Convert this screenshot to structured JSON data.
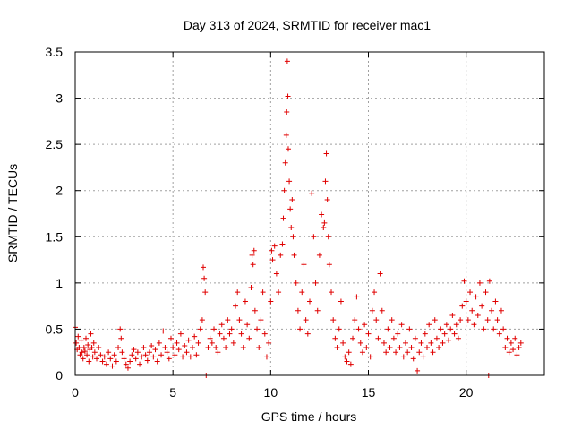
{
  "chart_data": {
    "type": "scatter",
    "title": "Day 313 of 2024, SRMTID for receiver mac1",
    "xlabel": "GPS time / hours",
    "ylabel": "SRMTID / TECUs",
    "xlim": [
      0,
      24
    ],
    "ylim": [
      0,
      3.5
    ],
    "xticks": [
      "0",
      "5",
      "10",
      "15",
      "20"
    ],
    "yticks": [
      "0",
      "0.5",
      "1",
      "1.5",
      "2",
      "2.5",
      "3",
      "3.5"
    ],
    "grid": true,
    "marker": "plus",
    "colors": {
      "series": "#e00000",
      "grid": "#a0a0a0",
      "axis": "#000000"
    },
    "series": [
      {
        "name": "SRMTID",
        "points": [
          [
            0.0,
            0.52
          ],
          [
            0.05,
            0.35
          ],
          [
            0.1,
            0.28
          ],
          [
            0.15,
            0.42
          ],
          [
            0.2,
            0.3
          ],
          [
            0.25,
            0.22
          ],
          [
            0.3,
            0.38
          ],
          [
            0.35,
            0.25
          ],
          [
            0.4,
            0.18
          ],
          [
            0.45,
            0.3
          ],
          [
            0.5,
            0.26
          ],
          [
            0.55,
            0.4
          ],
          [
            0.6,
            0.22
          ],
          [
            0.65,
            0.33
          ],
          [
            0.7,
            0.15
          ],
          [
            0.75,
            0.28
          ],
          [
            0.8,
            0.45
          ],
          [
            0.85,
            0.3
          ],
          [
            0.9,
            0.2
          ],
          [
            0.95,
            0.35
          ],
          [
            1.0,
            0.25
          ],
          [
            1.1,
            0.18
          ],
          [
            1.2,
            0.3
          ],
          [
            1.3,
            0.22
          ],
          [
            1.4,
            0.15
          ],
          [
            1.5,
            0.2
          ],
          [
            1.6,
            0.12
          ],
          [
            1.7,
            0.25
          ],
          [
            1.8,
            0.18
          ],
          [
            1.9,
            0.1
          ],
          [
            2.0,
            0.22
          ],
          [
            2.1,
            0.15
          ],
          [
            2.2,
            0.3
          ],
          [
            2.3,
            0.5
          ],
          [
            2.35,
            0.4
          ],
          [
            2.4,
            0.25
          ],
          [
            2.5,
            0.18
          ],
          [
            2.6,
            0.12
          ],
          [
            2.7,
            0.08
          ],
          [
            2.8,
            0.15
          ],
          [
            2.9,
            0.22
          ],
          [
            3.0,
            0.28
          ],
          [
            3.1,
            0.18
          ],
          [
            3.2,
            0.25
          ],
          [
            3.3,
            0.12
          ],
          [
            3.4,
            0.2
          ],
          [
            3.5,
            0.3
          ],
          [
            3.6,
            0.22
          ],
          [
            3.7,
            0.16
          ],
          [
            3.8,
            0.25
          ],
          [
            3.9,
            0.32
          ],
          [
            4.0,
            0.2
          ],
          [
            4.1,
            0.28
          ],
          [
            4.2,
            0.15
          ],
          [
            4.3,
            0.35
          ],
          [
            4.4,
            0.22
          ],
          [
            4.5,
            0.48
          ],
          [
            4.6,
            0.3
          ],
          [
            4.7,
            0.25
          ],
          [
            4.8,
            0.18
          ],
          [
            4.9,
            0.4
          ],
          [
            5.0,
            0.3
          ],
          [
            5.1,
            0.22
          ],
          [
            5.2,
            0.35
          ],
          [
            5.3,
            0.28
          ],
          [
            5.4,
            0.45
          ],
          [
            5.5,
            0.2
          ],
          [
            5.6,
            0.32
          ],
          [
            5.7,
            0.25
          ],
          [
            5.8,
            0.38
          ],
          [
            5.9,
            0.2
          ],
          [
            6.0,
            0.3
          ],
          [
            6.1,
            0.42
          ],
          [
            6.2,
            0.22
          ],
          [
            6.3,
            0.35
          ],
          [
            6.4,
            0.5
          ],
          [
            6.5,
            0.6
          ],
          [
            6.55,
            1.17
          ],
          [
            6.6,
            1.05
          ],
          [
            6.65,
            0.9
          ],
          [
            6.7,
            0.0
          ],
          [
            6.8,
            0.3
          ],
          [
            6.9,
            0.4
          ],
          [
            7.0,
            0.35
          ],
          [
            7.1,
            0.5
          ],
          [
            7.2,
            0.3
          ],
          [
            7.3,
            0.25
          ],
          [
            7.4,
            0.45
          ],
          [
            7.5,
            0.55
          ],
          [
            7.6,
            0.4
          ],
          [
            7.7,
            0.3
          ],
          [
            7.8,
            0.6
          ],
          [
            7.9,
            0.45
          ],
          [
            8.0,
            0.5
          ],
          [
            8.1,
            0.35
          ],
          [
            8.2,
            0.75
          ],
          [
            8.3,
            0.9
          ],
          [
            8.4,
            0.6
          ],
          [
            8.5,
            0.45
          ],
          [
            8.6,
            0.3
          ],
          [
            8.7,
            0.8
          ],
          [
            8.8,
            0.55
          ],
          [
            8.9,
            0.4
          ],
          [
            9.0,
            0.95
          ],
          [
            9.05,
            1.3
          ],
          [
            9.1,
            1.2
          ],
          [
            9.15,
            1.35
          ],
          [
            9.2,
            0.7
          ],
          [
            9.3,
            0.5
          ],
          [
            9.4,
            0.3
          ],
          [
            9.5,
            0.6
          ],
          [
            9.6,
            0.9
          ],
          [
            9.7,
            0.45
          ],
          [
            9.8,
            0.2
          ],
          [
            9.9,
            0.35
          ],
          [
            10.0,
            0.8
          ],
          [
            10.05,
            1.35
          ],
          [
            10.1,
            1.25
          ],
          [
            10.2,
            1.4
          ],
          [
            10.3,
            1.1
          ],
          [
            10.4,
            0.9
          ],
          [
            10.5,
            1.3
          ],
          [
            10.6,
            1.42
          ],
          [
            10.65,
            1.7
          ],
          [
            10.7,
            2.0
          ],
          [
            10.75,
            2.3
          ],
          [
            10.8,
            2.6
          ],
          [
            10.82,
            2.85
          ],
          [
            10.85,
            3.4
          ],
          [
            10.88,
            3.02
          ],
          [
            10.9,
            2.45
          ],
          [
            10.95,
            2.1
          ],
          [
            11.0,
            1.8
          ],
          [
            11.05,
            1.6
          ],
          [
            11.1,
            1.9
          ],
          [
            11.15,
            1.5
          ],
          [
            11.2,
            1.3
          ],
          [
            11.3,
            1.0
          ],
          [
            11.4,
            0.7
          ],
          [
            11.5,
            0.5
          ],
          [
            11.6,
            0.9
          ],
          [
            11.7,
            1.2
          ],
          [
            11.8,
            0.6
          ],
          [
            11.9,
            0.45
          ],
          [
            12.0,
            0.8
          ],
          [
            12.1,
            1.97
          ],
          [
            12.2,
            1.5
          ],
          [
            12.3,
            1.0
          ],
          [
            12.4,
            0.7
          ],
          [
            12.5,
            1.3
          ],
          [
            12.6,
            1.74
          ],
          [
            12.7,
            1.6
          ],
          [
            12.75,
            1.65
          ],
          [
            12.8,
            2.1
          ],
          [
            12.85,
            2.4
          ],
          [
            12.9,
            1.9
          ],
          [
            12.95,
            1.5
          ],
          [
            13.0,
            1.2
          ],
          [
            13.1,
            0.9
          ],
          [
            13.2,
            0.6
          ],
          [
            13.3,
            0.4
          ],
          [
            13.4,
            0.3
          ],
          [
            13.5,
            0.5
          ],
          [
            13.6,
            0.8
          ],
          [
            13.7,
            0.35
          ],
          [
            13.8,
            0.2
          ],
          [
            13.9,
            0.15
          ],
          [
            14.0,
            0.25
          ],
          [
            14.1,
            0.12
          ],
          [
            14.2,
            0.4
          ],
          [
            14.3,
            0.6
          ],
          [
            14.4,
            0.85
          ],
          [
            14.5,
            0.5
          ],
          [
            14.6,
            0.35
          ],
          [
            14.7,
            0.25
          ],
          [
            14.8,
            0.55
          ],
          [
            14.9,
            0.3
          ],
          [
            15.0,
            0.45
          ],
          [
            15.1,
            0.2
          ],
          [
            15.2,
            0.7
          ],
          [
            15.3,
            0.9
          ],
          [
            15.4,
            0.6
          ],
          [
            15.5,
            0.4
          ],
          [
            15.6,
            1.1
          ],
          [
            15.7,
            0.7
          ],
          [
            15.8,
            0.35
          ],
          [
            15.9,
            0.25
          ],
          [
            16.0,
            0.5
          ],
          [
            16.1,
            0.3
          ],
          [
            16.2,
            0.6
          ],
          [
            16.3,
            0.4
          ],
          [
            16.4,
            0.25
          ],
          [
            16.5,
            0.45
          ],
          [
            16.6,
            0.3
          ],
          [
            16.7,
            0.55
          ],
          [
            16.8,
            0.2
          ],
          [
            16.9,
            0.35
          ],
          [
            17.0,
            0.25
          ],
          [
            17.1,
            0.5
          ],
          [
            17.2,
            0.3
          ],
          [
            17.3,
            0.18
          ],
          [
            17.4,
            0.4
          ],
          [
            17.5,
            0.05
          ],
          [
            17.6,
            0.25
          ],
          [
            17.7,
            0.35
          ],
          [
            17.8,
            0.2
          ],
          [
            17.9,
            0.45
          ],
          [
            18.0,
            0.3
          ],
          [
            18.1,
            0.55
          ],
          [
            18.2,
            0.35
          ],
          [
            18.3,
            0.25
          ],
          [
            18.4,
            0.6
          ],
          [
            18.5,
            0.4
          ],
          [
            18.6,
            0.3
          ],
          [
            18.7,
            0.5
          ],
          [
            18.8,
            0.35
          ],
          [
            18.9,
            0.45
          ],
          [
            19.0,
            0.55
          ],
          [
            19.1,
            0.38
          ],
          [
            19.2,
            0.5
          ],
          [
            19.3,
            0.65
          ],
          [
            19.4,
            0.45
          ],
          [
            19.5,
            0.55
          ],
          [
            19.6,
            0.4
          ],
          [
            19.7,
            0.6
          ],
          [
            19.8,
            0.75
          ],
          [
            19.9,
            1.02
          ],
          [
            20.0,
            0.8
          ],
          [
            20.1,
            0.6
          ],
          [
            20.2,
            0.9
          ],
          [
            20.3,
            0.7
          ],
          [
            20.4,
            0.55
          ],
          [
            20.5,
            0.85
          ],
          [
            20.6,
            0.65
          ],
          [
            20.7,
            1.0
          ],
          [
            20.8,
            0.75
          ],
          [
            20.9,
            0.5
          ],
          [
            21.0,
            0.9
          ],
          [
            21.1,
            0.6
          ],
          [
            21.15,
            0.0
          ],
          [
            21.2,
            1.02
          ],
          [
            21.3,
            0.7
          ],
          [
            21.4,
            0.5
          ],
          [
            21.5,
            0.8
          ],
          [
            21.6,
            0.6
          ],
          [
            21.7,
            0.45
          ],
          [
            21.8,
            0.7
          ],
          [
            21.9,
            0.5
          ],
          [
            22.0,
            0.3
          ],
          [
            22.1,
            0.4
          ],
          [
            22.2,
            0.25
          ],
          [
            22.3,
            0.35
          ],
          [
            22.4,
            0.28
          ],
          [
            22.5,
            0.4
          ],
          [
            22.6,
            0.22
          ],
          [
            22.7,
            0.3
          ],
          [
            22.8,
            0.35
          ]
        ]
      }
    ]
  }
}
